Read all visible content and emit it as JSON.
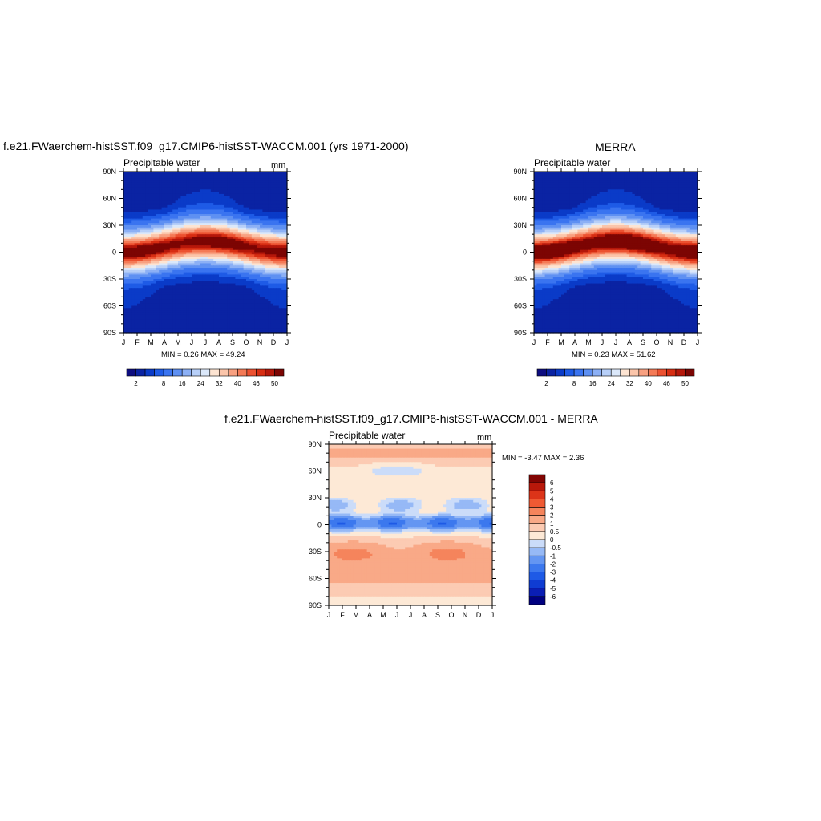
{
  "panel_a": {
    "title": "f.e21.FWaerchem-histSST.f09_g17.CMIP6-histSST-WACCM.001 (yrs 1971-2000)",
    "left_string": "Precipitable water",
    "right_string": "mm",
    "minmax": "MIN =   0.26 MAX =  49.24"
  },
  "panel_b": {
    "title": "MERRA",
    "left_string": "Precipitable water",
    "right_string": "",
    "minmax": "MIN =   0.23 MAX =  51.62"
  },
  "panel_c": {
    "title": "f.e21.FWaerchem-histSST.f09_g17.CMIP6-histSST-WACCM.001 - MERRA",
    "left_string": "Precipitable water",
    "right_string": "mm",
    "minmax": "MIN =  -3.47 MAX =   2.36"
  },
  "colors": {
    "abs_levels": [
      "#0d0d80",
      "#0a23a3",
      "#0a3bc8",
      "#1e5be6",
      "#3a74f0",
      "#5e90f2",
      "#8cb0f5",
      "#b7cff8",
      "#dbe8fa",
      "#fde4d2",
      "#fbc5aa",
      "#f8a080",
      "#f47a56",
      "#ec5130",
      "#d72d12",
      "#b5170a",
      "#7c0503"
    ],
    "diff_levels": [
      "#000080",
      "#0a1eb4",
      "#0f3cd2",
      "#1e5ae6",
      "#3c78ee",
      "#6496f2",
      "#96b9f6",
      "#cbdcf9",
      "#fde9d6",
      "#fccbb3",
      "#f9a987",
      "#f5845c",
      "#ef5a33",
      "#dc3419",
      "#b9180a",
      "#820503"
    ]
  },
  "chart_data": [
    {
      "type": "heatmap",
      "name": "model",
      "x_tick_labels": [
        "J",
        "F",
        "M",
        "A",
        "M",
        "J",
        "J",
        "A",
        "S",
        "O",
        "N",
        "D",
        "J"
      ],
      "y_tick_labels": [
        "90N",
        "60N",
        "30N",
        "0",
        "30S",
        "60S",
        "90S"
      ],
      "ylim": [
        -90,
        90
      ],
      "colorbar_labels": [
        "2",
        "8",
        "16",
        "24",
        "32",
        "40",
        "46",
        "50"
      ],
      "colorbar_levels": [
        2,
        4,
        6,
        8,
        12,
        16,
        20,
        24,
        28,
        32,
        36,
        40,
        43,
        46,
        48,
        50
      ],
      "min": 0.26,
      "max": 49.24,
      "field": "tropical precipitable water maximum near 5N migrating north to ~12N in Jul-Aug, decreasing to <2 mm at poles"
    },
    {
      "type": "heatmap",
      "name": "obs",
      "x_tick_labels": [
        "J",
        "F",
        "M",
        "A",
        "M",
        "J",
        "J",
        "A",
        "S",
        "O",
        "N",
        "D",
        "J"
      ],
      "y_tick_labels": [
        "90N",
        "60N",
        "30N",
        "0",
        "30S",
        "60S",
        "90S"
      ],
      "ylim": [
        -90,
        90
      ],
      "colorbar_labels": [
        "2",
        "8",
        "16",
        "24",
        "32",
        "40",
        "46",
        "50"
      ],
      "colorbar_levels": [
        2,
        4,
        6,
        8,
        12,
        16,
        20,
        24,
        28,
        32,
        36,
        40,
        43,
        46,
        48,
        50
      ],
      "min": 0.23,
      "max": 51.62
    },
    {
      "type": "heatmap",
      "name": "difference",
      "x_tick_labels": [
        "J",
        "F",
        "M",
        "A",
        "M",
        "J",
        "J",
        "A",
        "S",
        "O",
        "N",
        "D",
        "J"
      ],
      "y_tick_labels": [
        "90N",
        "60N",
        "30N",
        "0",
        "30S",
        "60S",
        "90S"
      ],
      "ylim": [
        -90,
        90
      ],
      "colorbar_labels": [
        "6",
        "5",
        "4",
        "3",
        "2",
        "1",
        "0.5",
        "0",
        "-0.5",
        "-1",
        "-2",
        "-3",
        "-4",
        "-5",
        "-6"
      ],
      "colorbar_levels": [
        -6,
        -5,
        -4,
        -3,
        -2,
        -1,
        -0.5,
        0,
        0.5,
        1,
        2,
        3,
        4,
        5,
        6
      ],
      "min": -3.47,
      "max": 2.36
    }
  ]
}
